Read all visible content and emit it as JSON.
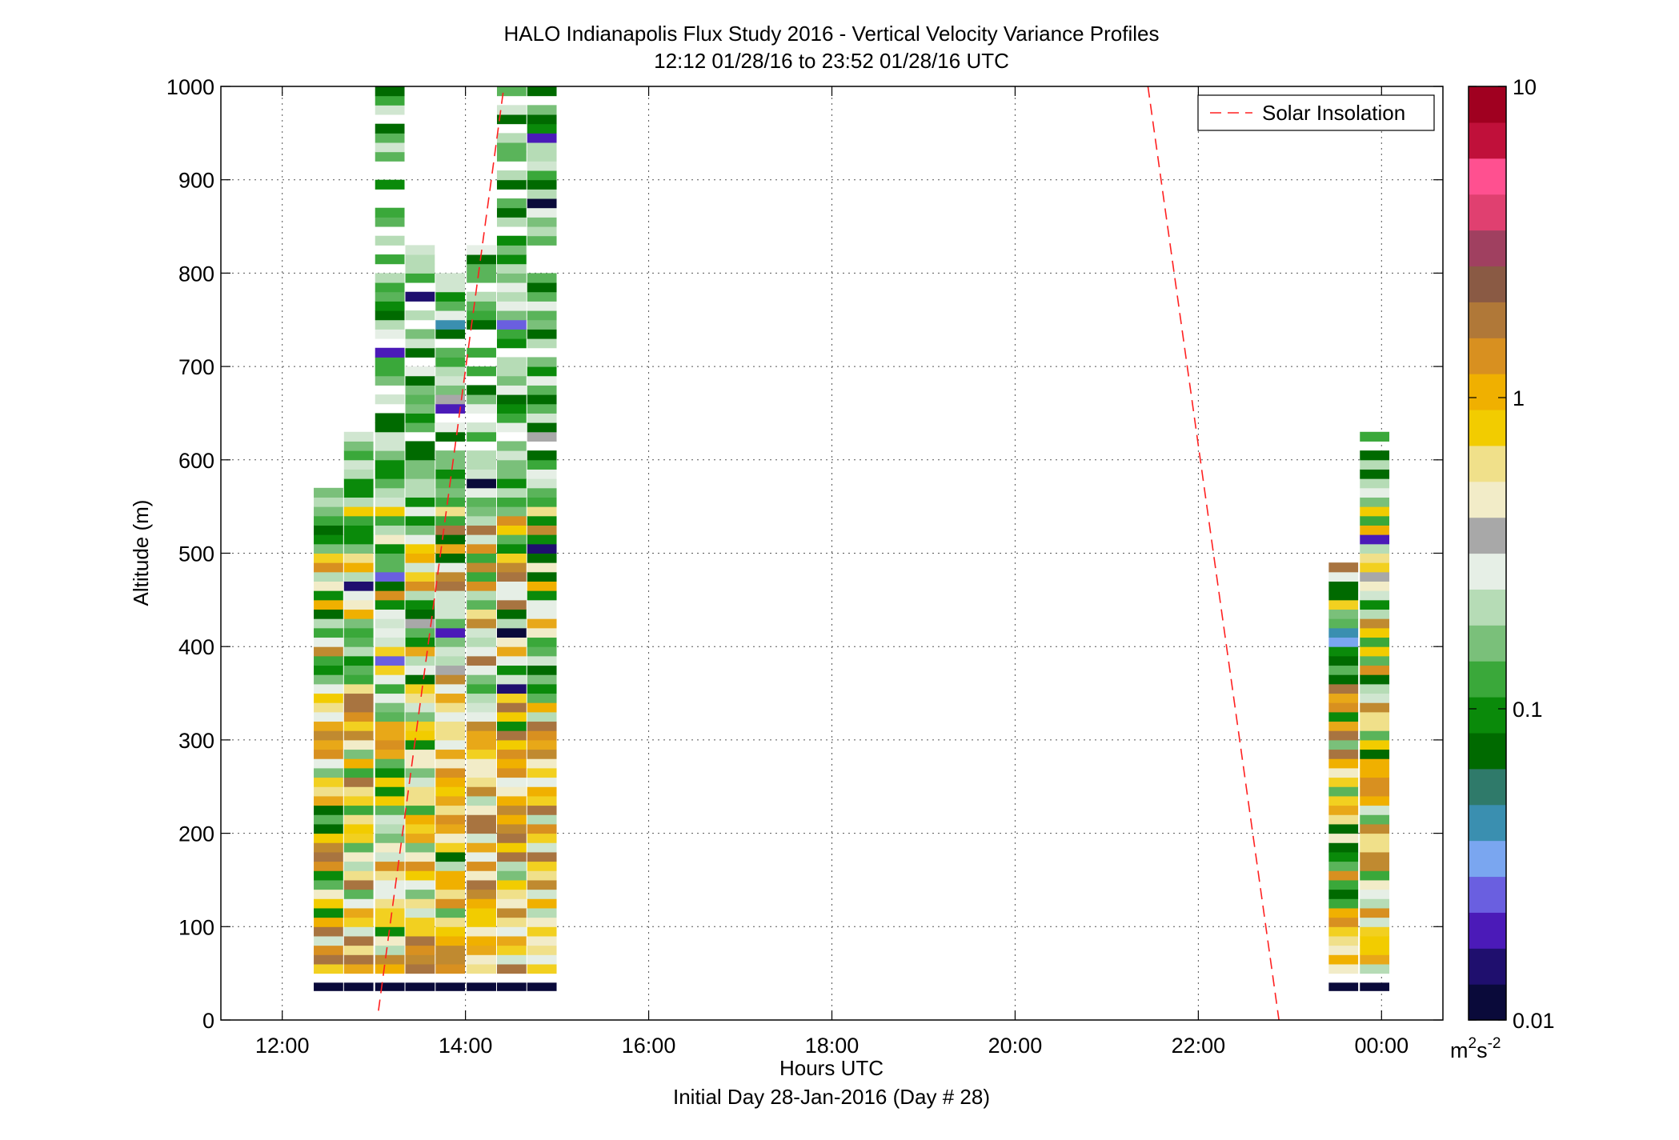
{
  "chart_data": {
    "type": "heatmap",
    "title": "HALO Indianapolis Flux Study 2016 - Vertical Velocity Variance Profiles",
    "subtitle": "12:12 01/28/16 to 23:52 01/28/16  UTC",
    "xlabel": "Hours UTC",
    "xlabel2": "Initial Day 28-Jan-2016 (Day # 28)",
    "ylabel": "Altitude (m)",
    "xlim_hours": [
      11.33,
      24.67
    ],
    "ylim": [
      0,
      1000
    ],
    "x_ticks": [
      {
        "value": 12,
        "label": "12:00"
      },
      {
        "value": 14,
        "label": "14:00"
      },
      {
        "value": 16,
        "label": "16:00"
      },
      {
        "value": 18,
        "label": "18:00"
      },
      {
        "value": 20,
        "label": "20:00"
      },
      {
        "value": 22,
        "label": "22:00"
      },
      {
        "value": 24,
        "label": "00:00"
      }
    ],
    "y_ticks": [
      {
        "value": 0,
        "label": "0"
      },
      {
        "value": 100,
        "label": "100"
      },
      {
        "value": 200,
        "label": "200"
      },
      {
        "value": 300,
        "label": "300"
      },
      {
        "value": 400,
        "label": "400"
      },
      {
        "value": 500,
        "label": "500"
      },
      {
        "value": 600,
        "label": "600"
      },
      {
        "value": 700,
        "label": "700"
      },
      {
        "value": 800,
        "label": "800"
      },
      {
        "value": 900,
        "label": "900"
      },
      {
        "value": 1000,
        "label": "1000"
      }
    ],
    "grid": true,
    "grid_style": "dotted",
    "colorbar": {
      "scale": "log",
      "range": [
        0.01,
        10
      ],
      "ticks": [
        {
          "value": 10,
          "label": "10"
        },
        {
          "value": 1,
          "label": "1"
        },
        {
          "value": 0.1,
          "label": "0.1"
        },
        {
          "value": 0.01,
          "label": "0.01"
        }
      ],
      "unit_base": "m",
      "unit_sup1": "2",
      "unit_mid": "s",
      "unit_sup2": "-2",
      "colors": [
        "#0a0a3a",
        "#1f0f6e",
        "#4b1ab8",
        "#6a5fe0",
        "#7aa6f0",
        "#3a8fb0",
        "#2f7a6a",
        "#006a00",
        "#0a8a0a",
        "#3aa83a",
        "#7ac07a",
        "#b6dcb6",
        "#e6efe6",
        "#a8a8a8",
        "#f2ecc8",
        "#f0e08a",
        "#f2cc00",
        "#f0b000",
        "#d89020",
        "#b07838",
        "#8a5a44",
        "#a04060",
        "#e04070",
        "#ff5090",
        "#c0103a",
        "#a00020"
      ]
    },
    "legend": {
      "position": "top-right",
      "entries": [
        {
          "label": "Solar Insolation",
          "style": "red-dashed"
        }
      ]
    },
    "solar_insolation": [
      {
        "x": 13.05,
        "y": 10
      },
      {
        "x": 14.42,
        "y": 1000
      }
    ],
    "solar_insolation_2": [
      {
        "x": 21.45,
        "y": 1000
      },
      {
        "x": 22.88,
        "y": 0
      }
    ],
    "profiles": [
      {
        "time": 12.5,
        "top": 565,
        "ground": 40
      },
      {
        "time": 12.83,
        "top": 630,
        "ground": 40
      },
      {
        "time": 13.17,
        "top": 1000,
        "ground": 40
      },
      {
        "time": 13.5,
        "top": 830,
        "ground": 40
      },
      {
        "time": 13.83,
        "top": 800,
        "ground": 40
      },
      {
        "time": 14.17,
        "top": 840,
        "ground": 40
      },
      {
        "time": 14.5,
        "top": 1000,
        "ground": 40
      },
      {
        "time": 14.83,
        "top": 1000,
        "ground": 40
      },
      {
        "time": 23.58,
        "top": 490,
        "ground": 40
      },
      {
        "time": 23.92,
        "top": 625,
        "ground": 40
      }
    ]
  }
}
